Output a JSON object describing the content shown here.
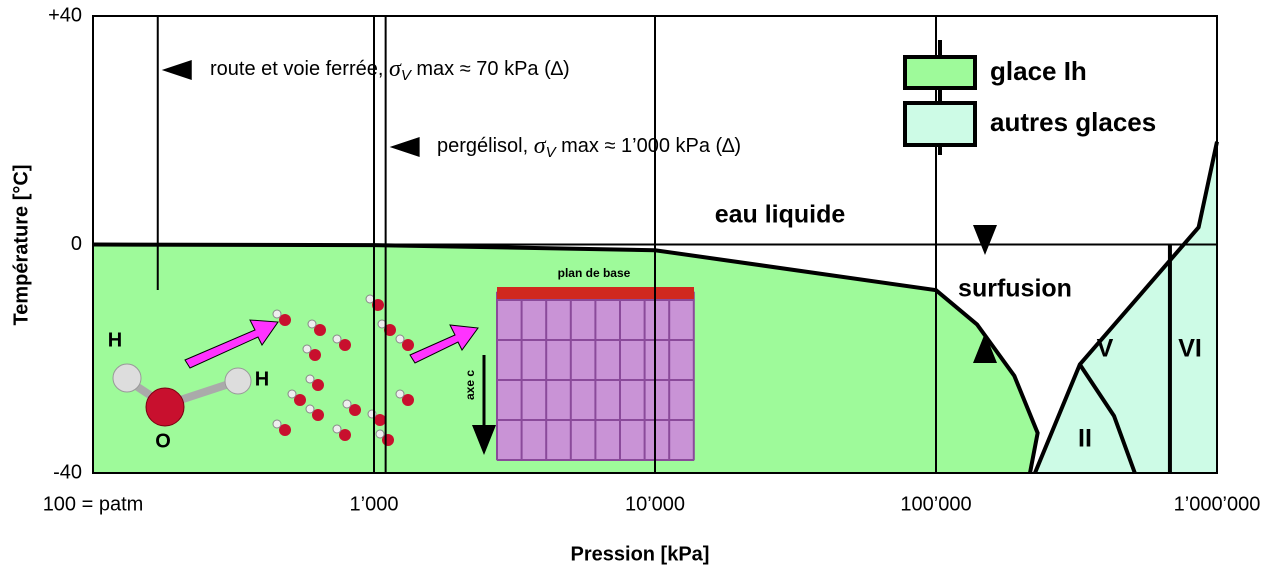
{
  "chart_data": {
    "type": "line",
    "x_label": "Pression [kPa]",
    "y_label": "Température  [°C]",
    "xscale": "log",
    "xlim": [
      100,
      1000000
    ],
    "xticks": [
      {
        "value": 100,
        "label": "100 = patm"
      },
      {
        "value": 1000,
        "label": "1’000"
      },
      {
        "value": 10000,
        "label": "10’000"
      },
      {
        "value": 100000,
        "label": "100’000"
      },
      {
        "value": 1000000,
        "label": "1’000’000"
      }
    ],
    "ylim": [
      -40,
      40
    ],
    "yticks": [
      {
        "value": 40,
        "label": "+40"
      },
      0,
      -40
    ],
    "grid": true,
    "legend": "top-right",
    "series": [
      {
        "name": "glace Ih",
        "color": "#9efa9a",
        "fill": true,
        "x": [
          100,
          1000,
          10000,
          100000,
          140000,
          190000,
          230000,
          216000
        ],
        "values": [
          0,
          -0.1,
          -1,
          -8,
          -14,
          -23,
          -33,
          -40
        ]
      },
      {
        "name": "autres glaces",
        "color": "#cdfbe6",
        "fill": true,
        "x": [
          225000,
          325000,
          860000,
          1000000
        ],
        "values": [
          -40,
          -21,
          3,
          18
        ]
      }
    ],
    "boundaries": [
      {
        "x": [
          325000,
          430000,
          510000
        ],
        "values": [
          -21,
          -30,
          -40
        ]
      },
      {
        "x": [
          680000,
          680000
        ],
        "values": [
          0,
          -40
        ]
      }
    ],
    "annotations": [
      {
        "x": 170,
        "parts": [
          "route et voie ferrée, ",
          "σ",
          "V",
          " max ≈ 70 kPa (∆)"
        ]
      },
      {
        "x": 1100,
        "parts": [
          "pergélisol, ",
          "σ",
          "V",
          " max ≈ 1’000 kPa (∆)"
        ]
      }
    ],
    "region_labels": [
      "eau liquide",
      "surfusion",
      "II",
      "V",
      "VI"
    ],
    "molecule_labels": [
      "H",
      "H",
      "O"
    ],
    "crystal_labels": [
      "plan de base",
      "axe c"
    ]
  }
}
